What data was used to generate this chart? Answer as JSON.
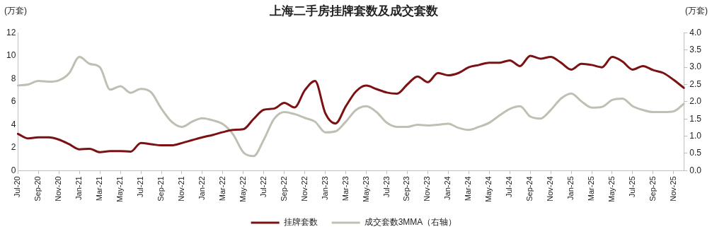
{
  "chart_data": {
    "type": "line",
    "title": "上海二手房挂牌套数及成交套数",
    "ylabel": "(万套)",
    "y2label": "(万套)",
    "categories": [
      "Jul-20",
      null,
      "Sep-20",
      null,
      "Nov-20",
      null,
      "Jan-21",
      null,
      "Mar-21",
      null,
      "May-21",
      null,
      "Jul-21",
      null,
      "Sep-21",
      null,
      "Nov-21",
      null,
      "Jan-22",
      null,
      "Mar-22",
      null,
      "May-22",
      null,
      "Jul-22",
      null,
      "Sep-22",
      null,
      "Nov-22",
      null,
      "Jan-23",
      null,
      "Mar-23",
      null,
      "May-23",
      null,
      "Jul-23",
      null,
      "Sep-23",
      null,
      "Nov-23",
      null,
      "Jan-24",
      null,
      "Mar-24",
      null,
      "May-24",
      null,
      "Jul-24",
      null,
      "Sep-24",
      null,
      "Nov-24",
      null,
      "Jan-25",
      null,
      "Mar-25",
      null,
      "May-25",
      null,
      "Jul-25",
      null,
      "Sep-25",
      null,
      "Nov-25",
      null
    ],
    "series": [
      {
        "name": "挂牌套数",
        "color": "#7b1113",
        "values": [
          3.2,
          2.8,
          2.9,
          2.9,
          2.7,
          2.3,
          1.85,
          1.9,
          1.6,
          1.7,
          1.7,
          1.65,
          2.4,
          2.3,
          2.2,
          2.2,
          2.4,
          2.65,
          2.9,
          3.1,
          3.35,
          3.55,
          3.6,
          4.5,
          5.3,
          5.4,
          5.9,
          5.5,
          7.0,
          7.8,
          5.0,
          4.1,
          5.6,
          6.9,
          7.4,
          7.1,
          6.8,
          6.7,
          7.5,
          8.2,
          7.7,
          8.5,
          8.3,
          8.5,
          9.0,
          9.2,
          9.4,
          9.4,
          9.6,
          9.1,
          10.0,
          9.75,
          9.9,
          9.4,
          8.8,
          9.3,
          9.2,
          9.0,
          9.9,
          9.5,
          8.8,
          9.1,
          8.75,
          8.5,
          7.9,
          7.2
        ]
      },
      {
        "name": "成交套数3MMA（右轴）",
        "color": "#bfbfb4",
        "axis": "y2",
        "values": [
          2.47,
          2.5,
          2.6,
          2.58,
          2.62,
          2.83,
          3.3,
          3.1,
          3.0,
          2.35,
          2.45,
          2.26,
          2.37,
          2.27,
          1.8,
          1.42,
          1.27,
          1.42,
          1.52,
          1.46,
          1.35,
          1.05,
          0.53,
          0.42,
          0.9,
          1.5,
          1.7,
          1.64,
          1.53,
          1.42,
          1.11,
          1.14,
          1.42,
          1.76,
          1.87,
          1.7,
          1.39,
          1.27,
          1.27,
          1.33,
          1.31,
          1.33,
          1.36,
          1.24,
          1.18,
          1.27,
          1.39,
          1.6,
          1.79,
          1.87,
          1.57,
          1.51,
          1.76,
          2.09,
          2.24,
          2.01,
          1.83,
          1.85,
          2.05,
          2.09,
          1.87,
          1.76,
          1.7,
          1.7,
          1.72,
          1.94
        ]
      }
    ],
    "ylim": [
      0,
      12
    ],
    "yticks": [
      0,
      2,
      4,
      6,
      8,
      10,
      12
    ],
    "y2lim": [
      0,
      4
    ],
    "y2ticks": [
      {
        "value": 0,
        "label": "0.0"
      },
      {
        "value": 0.5,
        "label": "0.5"
      },
      {
        "value": 1,
        "label": "1.0"
      },
      {
        "value": 1.5,
        "label": "1.5"
      },
      {
        "value": 2,
        "label": "2.0"
      },
      {
        "value": 2.5,
        "label": "2.5"
      },
      {
        "value": 3,
        "label": "3.0"
      },
      {
        "value": 3.5,
        "label": "3.5"
      },
      {
        "value": 4,
        "label": "4.0"
      }
    ],
    "grid": false,
    "legend": "bottom",
    "marker": "none",
    "line_style": "solid"
  }
}
